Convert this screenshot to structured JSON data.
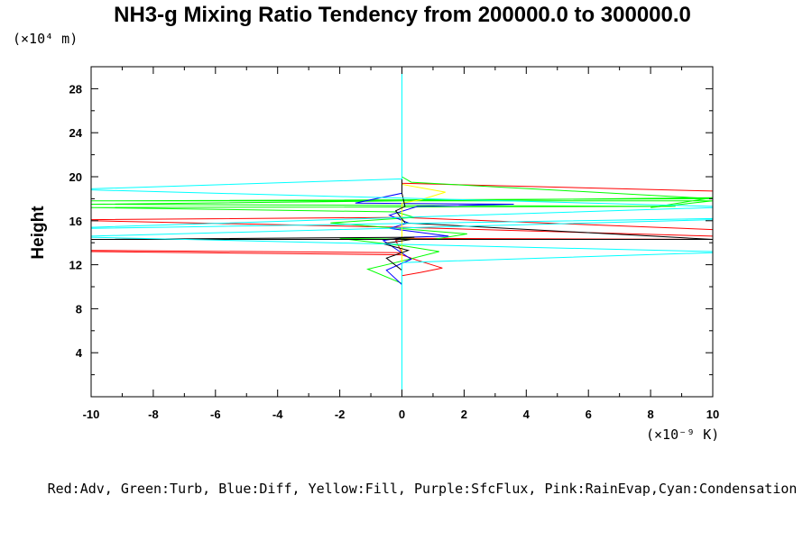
{
  "chart_data": {
    "type": "line",
    "title": "NH3-g Mixing Ratio Tendency from 200000.0 to 300000.0",
    "ylabel": "Height",
    "xlabel": "",
    "y_unit": "(×10⁴ m)",
    "x_unit": "(×10⁻⁹ K)",
    "xlim": [
      -10,
      10
    ],
    "ylim": [
      0,
      30
    ],
    "x_ticks": [
      "-10",
      "-8",
      "-6",
      "-4",
      "-2",
      "0",
      "2",
      "4",
      "6",
      "8",
      "10"
    ],
    "y_ticks": [
      "4",
      "8",
      "12",
      "16",
      "20",
      "24",
      "28"
    ],
    "legend_text": "Red:Adv, Green:Turb, Blue:Diff, Yellow:Fill, Purple:SfcFlux, Pink:RainEvap,Cyan:Condensation",
    "grid": false,
    "series": [
      {
        "name": "Red:Adv",
        "color": "#ff0000",
        "x": [
          0,
          0,
          0,
          0,
          0.6,
          1.3,
          0.5,
          0,
          -10,
          -10,
          0,
          -0.2,
          0,
          10,
          10,
          0,
          -10,
          -10,
          0,
          10,
          10,
          0,
          0,
          0
        ],
        "y": [
          0,
          8,
          10.5,
          11,
          11.3,
          11.7,
          12.4,
          12.9,
          13.2,
          13.3,
          13.1,
          14.2,
          14.4,
          14.3,
          14.6,
          15.4,
          16.0,
          16.1,
          16.3,
          15.2,
          18.7,
          19.4,
          20.5,
          30
        ]
      },
      {
        "name": "Green:Turb",
        "color": "#00ff00",
        "x": [
          0,
          0,
          -1.1,
          -0.2,
          1.2,
          0.1,
          -2,
          1,
          2.1,
          -2.3,
          0.4,
          -0.2,
          -10,
          8.8,
          -10,
          10,
          8,
          10,
          -10,
          10,
          0.3,
          0,
          0
        ],
        "y": [
          0,
          10.3,
          11.6,
          12.2,
          13.2,
          13.7,
          14.4,
          14.3,
          14.8,
          15.8,
          16.3,
          16.8,
          17.2,
          17.3,
          17.5,
          18.1,
          17.2,
          17.8,
          17.8,
          18.0,
          19.5,
          20,
          30
        ]
      },
      {
        "name": "Blue:Diff",
        "color": "#0000ff",
        "x": [
          0,
          0,
          -0.5,
          0.3,
          -0.6,
          0.1,
          1.5,
          -0.4,
          0.2,
          -0.4,
          0.5,
          3.6,
          -1.5,
          0,
          0
        ],
        "y": [
          0,
          10.2,
          11.5,
          12.5,
          14.2,
          14.5,
          14.6,
          15.3,
          15.8,
          16.5,
          17.3,
          17.5,
          17.6,
          18.5,
          30
        ]
      },
      {
        "name": "Yellow:Fill",
        "color": "#ffff00",
        "x": [
          0,
          0,
          0.6,
          1.4,
          0,
          0
        ],
        "y": [
          0,
          17.6,
          17.9,
          18.6,
          19.3,
          30
        ]
      },
      {
        "name": "Black",
        "color": "#000000",
        "x": [
          0,
          0,
          0,
          -0.5,
          0.2,
          -0.6,
          0.3,
          -0.5,
          0.4,
          -10,
          10,
          0.1,
          -0.2,
          0.1,
          0,
          0
        ],
        "y": [
          0,
          10.2,
          11.5,
          12.6,
          13.3,
          13.9,
          14.3,
          14.3,
          14.5,
          14.3,
          14.3,
          15.8,
          16.9,
          17.3,
          18.5,
          30
        ]
      },
      {
        "name": "Cyan:Condensation",
        "color": "#00ffff",
        "x": [
          0,
          0,
          0,
          10,
          10,
          -10,
          -10,
          10,
          10,
          -10,
          -10,
          10,
          10,
          -10,
          -10,
          0,
          0
        ],
        "y": [
          0,
          10.2,
          12.2,
          13.1,
          13.2,
          14.5,
          14.6,
          16.1,
          16.2,
          15.3,
          15.4,
          17.2,
          17.3,
          18.8,
          18.9,
          19.8,
          30
        ]
      }
    ]
  }
}
